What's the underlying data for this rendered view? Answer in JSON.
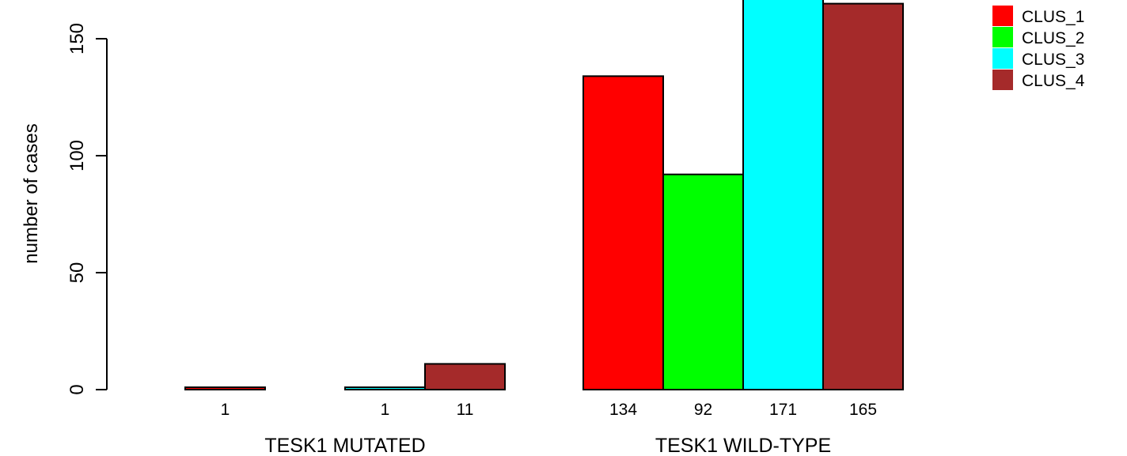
{
  "chart_data": {
    "type": "bar",
    "ylabel": "number of cases",
    "ylim": [
      0,
      171
    ],
    "yticks": [
      0,
      50,
      100,
      150
    ],
    "groups": [
      "TESK1 MUTATED",
      "TESK1 WILD-TYPE"
    ],
    "series": [
      {
        "name": "CLUS_1",
        "color": "#FF0000",
        "values": [
          1,
          134
        ],
        "labels": [
          "1",
          "134"
        ]
      },
      {
        "name": "CLUS_2",
        "color": "#00FF00",
        "values": [
          0,
          92
        ],
        "labels": [
          "",
          "92"
        ]
      },
      {
        "name": "CLUS_3",
        "color": "#00FFFF",
        "values": [
          1,
          171
        ],
        "labels": [
          "1",
          "171"
        ]
      },
      {
        "name": "CLUS_4",
        "color": "#A52A2A",
        "values": [
          11,
          165
        ],
        "labels": [
          "11",
          "165"
        ]
      }
    ],
    "legend": "top-right",
    "grid": false
  }
}
